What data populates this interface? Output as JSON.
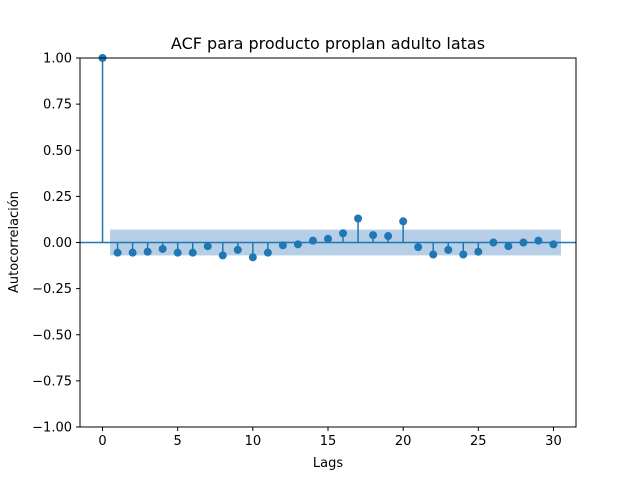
{
  "chart_data": {
    "type": "stem",
    "title": "ACF para producto proplan adulto latas",
    "xlabel": "Lags",
    "ylabel": "Autocorrelación",
    "xlim": [
      -1.5,
      31.5
    ],
    "ylim": [
      -1.0,
      1.0
    ],
    "xticks": [
      0,
      5,
      10,
      15,
      20,
      25,
      30
    ],
    "yticks": [
      -1.0,
      -0.75,
      -0.5,
      -0.25,
      0.0,
      0.25,
      0.5,
      0.75,
      1.0
    ],
    "xtick_labels": [
      "0",
      "5",
      "10",
      "15",
      "20",
      "25",
      "30"
    ],
    "ytick_labels": [
      "−1.00",
      "−0.75",
      "−0.50",
      "−0.25",
      "0.00",
      "0.25",
      "0.50",
      "0.75",
      "1.00"
    ],
    "grid": false,
    "color": "#1f77b4",
    "band_color": "#b6cfe6",
    "confidence_band": {
      "x_start": 0.5,
      "x_end": 30.5,
      "upper": 0.07,
      "lower": -0.07
    },
    "lags": [
      0,
      1,
      2,
      3,
      4,
      5,
      6,
      7,
      8,
      9,
      10,
      11,
      12,
      13,
      14,
      15,
      16,
      17,
      18,
      19,
      20,
      21,
      22,
      23,
      24,
      25,
      26,
      27,
      28,
      29,
      30
    ],
    "values": [
      1.0,
      -0.055,
      -0.055,
      -0.05,
      -0.035,
      -0.055,
      -0.055,
      -0.02,
      -0.07,
      -0.04,
      -0.08,
      -0.055,
      -0.015,
      -0.01,
      0.01,
      0.02,
      0.05,
      0.13,
      0.04,
      0.035,
      0.115,
      -0.025,
      -0.065,
      -0.04,
      -0.065,
      -0.05,
      0.0,
      -0.02,
      0.0,
      0.01,
      -0.01
    ]
  }
}
